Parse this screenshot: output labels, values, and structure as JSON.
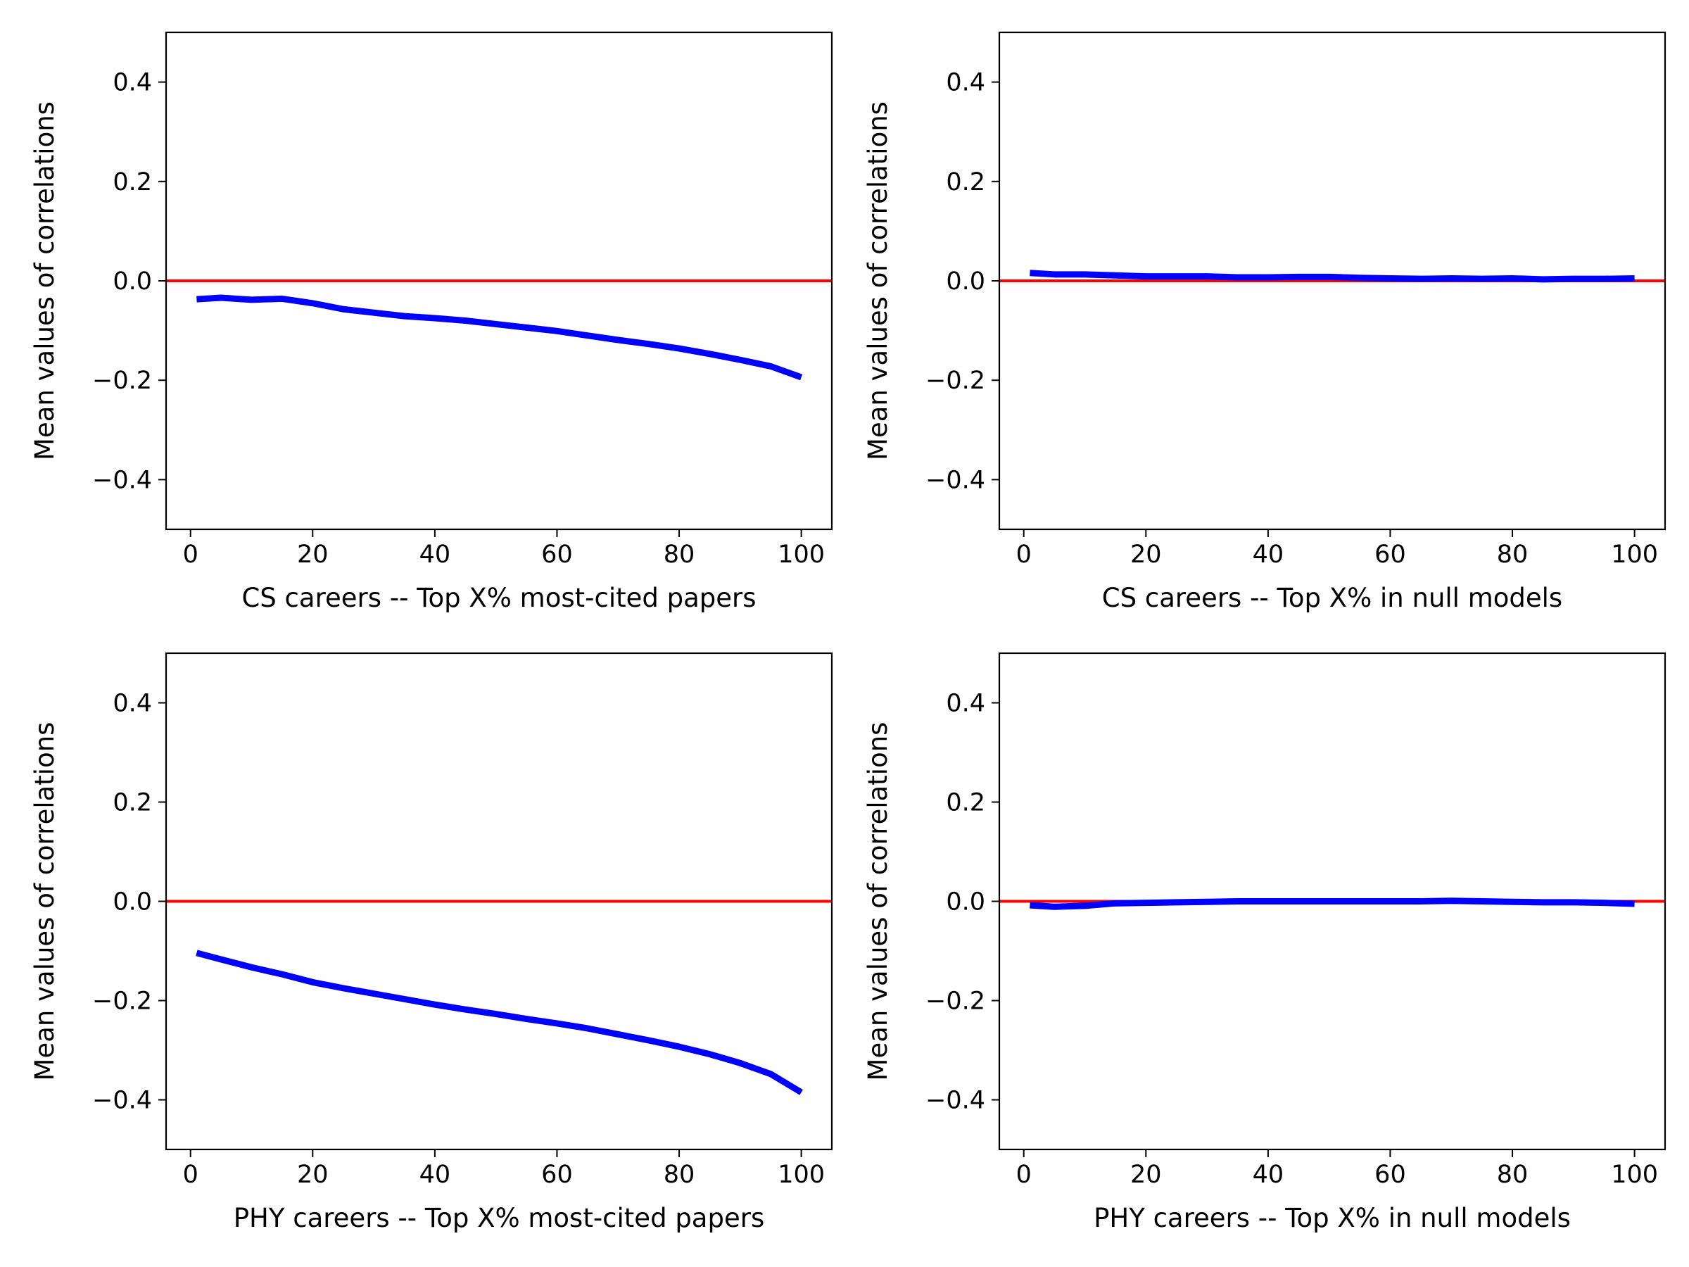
{
  "colors": {
    "series_line": "#0000ff",
    "reference_line": "#ff0000",
    "axes": "#000000",
    "background": "#ffffff"
  },
  "chart_data": [
    {
      "id": "cs-top-cited",
      "type": "line",
      "title": "",
      "xlabel": "CS careers -- Top X% most-cited papers",
      "ylabel": "Mean values of correlations",
      "xlim": [
        -4,
        105
      ],
      "ylim": [
        -0.5,
        0.5
      ],
      "xticks": [
        0,
        20,
        40,
        60,
        80,
        100
      ],
      "xtick_labels": [
        "0",
        "20",
        "40",
        "60",
        "80",
        "100"
      ],
      "yticks": [
        -0.4,
        -0.2,
        0.0,
        0.2,
        0.4
      ],
      "ytick_labels": [
        "−0.4",
        "−0.2",
        "0.0",
        "0.2",
        "0.4"
      ],
      "reference_line": {
        "orientation": "horizontal",
        "y": 0.0,
        "color": "#ff0000"
      },
      "series": [
        {
          "name": "mean correlation",
          "color": "#0000ff",
          "x": [
            1,
            5,
            10,
            15,
            20,
            25,
            30,
            35,
            40,
            45,
            50,
            55,
            60,
            65,
            70,
            75,
            80,
            85,
            90,
            95,
            100
          ],
          "y": [
            -0.037,
            -0.034,
            -0.038,
            -0.036,
            -0.045,
            -0.057,
            -0.064,
            -0.071,
            -0.075,
            -0.08,
            -0.087,
            -0.094,
            -0.101,
            -0.11,
            -0.119,
            -0.127,
            -0.136,
            -0.147,
            -0.159,
            -0.172,
            -0.194
          ]
        }
      ]
    },
    {
      "id": "cs-null-model",
      "type": "line",
      "title": "",
      "xlabel": "CS careers -- Top X% in null models",
      "ylabel": "Mean values of correlations",
      "xlim": [
        -4,
        105
      ],
      "ylim": [
        -0.5,
        0.5
      ],
      "xticks": [
        0,
        20,
        40,
        60,
        80,
        100
      ],
      "xtick_labels": [
        "0",
        "20",
        "40",
        "60",
        "80",
        "100"
      ],
      "yticks": [
        -0.4,
        -0.2,
        0.0,
        0.2,
        0.4
      ],
      "ytick_labels": [
        "−0.4",
        "−0.2",
        "0.0",
        "0.2",
        "0.4"
      ],
      "reference_line": {
        "orientation": "horizontal",
        "y": 0.0,
        "color": "#ff0000"
      },
      "series": [
        {
          "name": "mean correlation",
          "color": "#0000ff",
          "x": [
            1,
            5,
            10,
            15,
            20,
            25,
            30,
            35,
            40,
            45,
            50,
            55,
            60,
            65,
            70,
            75,
            80,
            85,
            90,
            95,
            100
          ],
          "y": [
            0.016,
            0.013,
            0.013,
            0.011,
            0.009,
            0.009,
            0.009,
            0.007,
            0.007,
            0.008,
            0.008,
            0.006,
            0.005,
            0.004,
            0.005,
            0.004,
            0.005,
            0.003,
            0.004,
            0.004,
            0.005
          ]
        }
      ]
    },
    {
      "id": "phy-top-cited",
      "type": "line",
      "title": "",
      "xlabel": "PHY careers -- Top X% most-cited papers",
      "ylabel": "Mean values of correlations",
      "xlim": [
        -4,
        105
      ],
      "ylim": [
        -0.5,
        0.5
      ],
      "xticks": [
        0,
        20,
        40,
        60,
        80,
        100
      ],
      "xtick_labels": [
        "0",
        "20",
        "40",
        "60",
        "80",
        "100"
      ],
      "yticks": [
        -0.4,
        -0.2,
        0.0,
        0.2,
        0.4
      ],
      "ytick_labels": [
        "−0.4",
        "−0.2",
        "0.0",
        "0.2",
        "0.4"
      ],
      "reference_line": {
        "orientation": "horizontal",
        "y": 0.0,
        "color": "#ff0000"
      },
      "series": [
        {
          "name": "mean correlation",
          "color": "#0000ff",
          "x": [
            1,
            5,
            10,
            15,
            20,
            25,
            30,
            35,
            40,
            45,
            50,
            55,
            60,
            65,
            70,
            75,
            80,
            85,
            90,
            95,
            100
          ],
          "y": [
            -0.104,
            -0.117,
            -0.133,
            -0.147,
            -0.163,
            -0.175,
            -0.186,
            -0.197,
            -0.208,
            -0.218,
            -0.227,
            -0.237,
            -0.246,
            -0.256,
            -0.268,
            -0.28,
            -0.293,
            -0.308,
            -0.326,
            -0.348,
            -0.385
          ]
        }
      ]
    },
    {
      "id": "phy-null-model",
      "type": "line",
      "title": "",
      "xlabel": "PHY careers -- Top X% in null models",
      "ylabel": "Mean values of correlations",
      "xlim": [
        -4,
        105
      ],
      "ylim": [
        -0.5,
        0.5
      ],
      "xticks": [
        0,
        20,
        40,
        60,
        80,
        100
      ],
      "xtick_labels": [
        "0",
        "20",
        "40",
        "60",
        "80",
        "100"
      ],
      "yticks": [
        -0.4,
        -0.2,
        0.0,
        0.2,
        0.4
      ],
      "ytick_labels": [
        "−0.4",
        "−0.2",
        "0.0",
        "0.2",
        "0.4"
      ],
      "reference_line": {
        "orientation": "horizontal",
        "y": 0.0,
        "color": "#ff0000"
      },
      "series": [
        {
          "name": "mean correlation",
          "color": "#0000ff",
          "x": [
            1,
            5,
            10,
            15,
            20,
            25,
            30,
            35,
            40,
            45,
            50,
            55,
            60,
            65,
            70,
            75,
            80,
            85,
            90,
            95,
            100
          ],
          "y": [
            -0.008,
            -0.011,
            -0.009,
            -0.004,
            -0.003,
            -0.002,
            -0.001,
            0.0,
            0.0,
            0.0,
            0.0,
            0.0,
            0.0,
            0.0,
            0.001,
            0.0,
            -0.001,
            -0.002,
            -0.002,
            -0.003,
            -0.005
          ]
        }
      ]
    }
  ]
}
